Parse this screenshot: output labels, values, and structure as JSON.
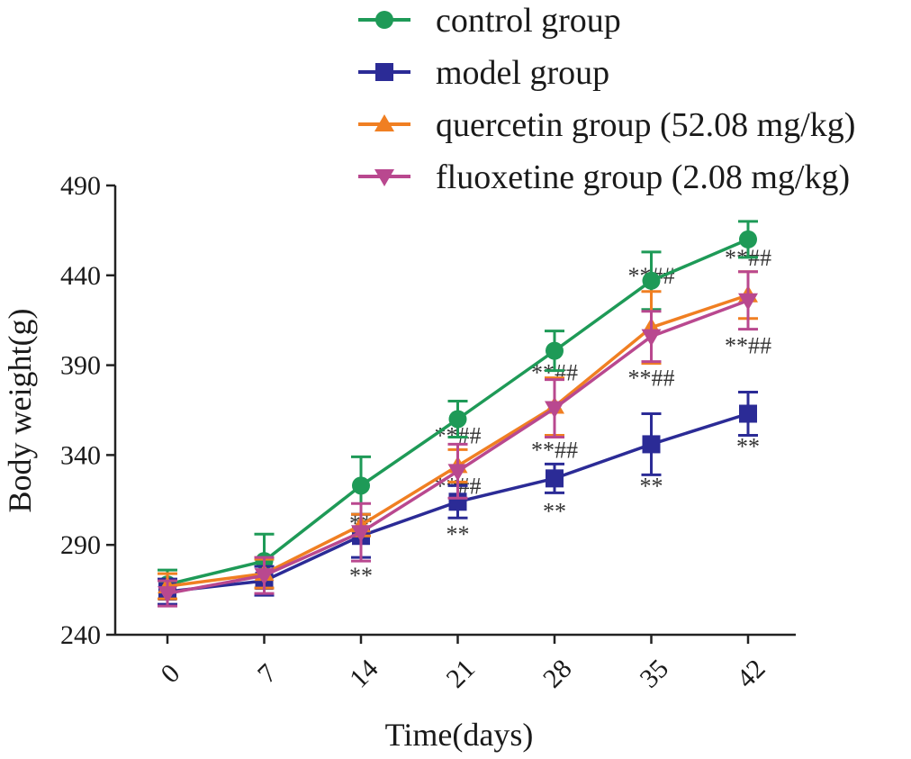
{
  "chart_data": {
    "type": "line",
    "title": "",
    "xlabel": "Time(days)",
    "ylabel": "Body weight(g)",
    "categories": [
      "0",
      "7",
      "14",
      "21",
      "28",
      "35",
      "42"
    ],
    "ylim": [
      240,
      490
    ],
    "yticks": [
      240,
      290,
      340,
      390,
      440,
      490
    ],
    "legend_position": "top",
    "series": [
      {
        "name": "control group",
        "color": "#1e9a57",
        "marker": "circle",
        "values": [
          268,
          281,
          323,
          360,
          398,
          437,
          460
        ],
        "errors": [
          8,
          15,
          16,
          10,
          11,
          16,
          10
        ]
      },
      {
        "name": "model group",
        "color": "#2b2b96",
        "marker": "square",
        "values": [
          264,
          270,
          295,
          314,
          327,
          346,
          363
        ],
        "errors": [
          7,
          8,
          12,
          9,
          8,
          17,
          12
        ]
      },
      {
        "name": "quercetin group (52.08 mg/kg)",
        "color": "#f07f22",
        "marker": "triangle-up",
        "values": [
          267,
          274,
          301,
          334,
          367,
          411,
          429
        ],
        "errors": [
          7,
          8,
          6,
          9,
          16,
          20,
          13
        ]
      },
      {
        "name": "fluoxetine group (2.08 mg/kg)",
        "color": "#b9488f",
        "marker": "triangle-down",
        "values": [
          263,
          273,
          297,
          331,
          366,
          406,
          426
        ],
        "errors": [
          7,
          10,
          16,
          15,
          16,
          14,
          16
        ]
      }
    ],
    "annotations": [
      {
        "x": "14",
        "y": 302,
        "text": "**"
      },
      {
        "x": "14",
        "y": 296,
        "text": "*"
      },
      {
        "x": "14",
        "y": 273,
        "text": "**"
      },
      {
        "x": "21",
        "y": 351,
        "text": "**##"
      },
      {
        "x": "21",
        "y": 323,
        "text": "**##"
      },
      {
        "x": "21",
        "y": 296,
        "text": "**"
      },
      {
        "x": "28",
        "y": 386,
        "text": "**##"
      },
      {
        "x": "28",
        "y": 343,
        "text": "**##"
      },
      {
        "x": "28",
        "y": 309,
        "text": "**"
      },
      {
        "x": "35",
        "y": 440,
        "text": "**##"
      },
      {
        "x": "35",
        "y": 383,
        "text": "**##"
      },
      {
        "x": "35",
        "y": 323,
        "text": "**"
      },
      {
        "x": "42",
        "y": 450,
        "text": "**##"
      },
      {
        "x": "42",
        "y": 401,
        "text": "**##"
      },
      {
        "x": "42",
        "y": 345,
        "text": "**"
      }
    ]
  }
}
